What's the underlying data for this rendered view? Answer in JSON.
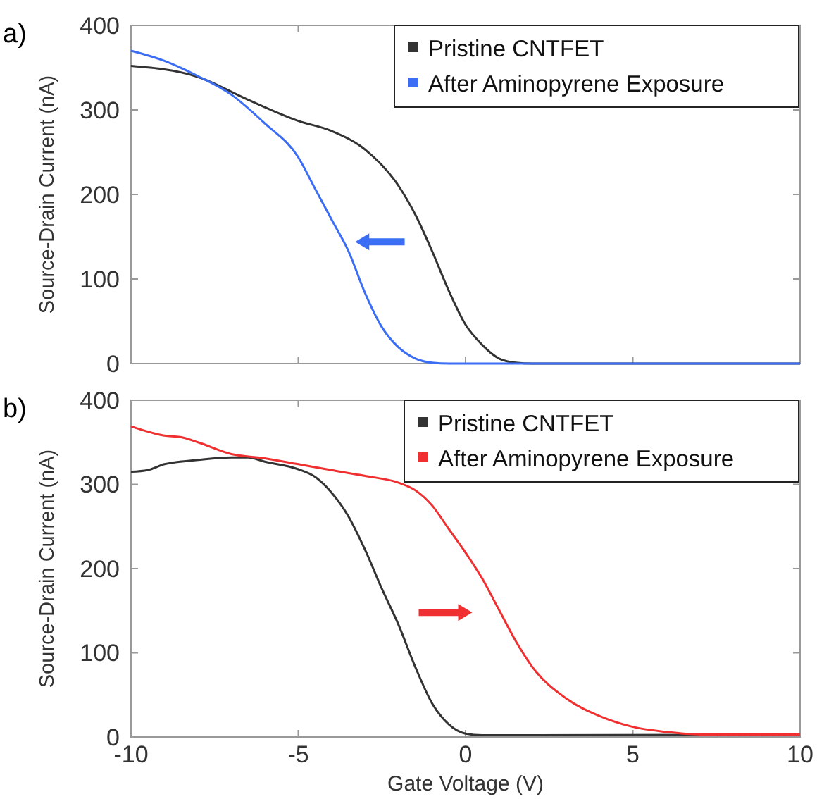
{
  "chart_data": [
    {
      "type": "line",
      "ylabel": "Source-Drain Current (nA)",
      "annotations": [
        "a)"
      ],
      "xlim": [
        -10,
        10
      ],
      "xticks": [
        {
          "value": -10,
          "label": null
        },
        {
          "value": -5,
          "label": null
        },
        {
          "value": 0,
          "label": null
        },
        {
          "value": 5,
          "label": null
        },
        {
          "value": 10,
          "label": null
        }
      ],
      "ylim": [
        0,
        400
      ],
      "yticks": [
        0,
        100,
        200,
        300,
        400
      ],
      "tick_labels": "y",
      "legend": "top right",
      "grid": false,
      "series": [
        {
          "name": "Pristine CNTFET",
          "color": "#333333",
          "x": [
            -10,
            -8,
            -6.5,
            -5,
            -4,
            -3,
            -2,
            -1.5,
            -1,
            -0.5,
            0,
            0.5,
            1,
            1.5,
            2,
            10
          ],
          "values": [
            352,
            339,
            312,
            287,
            275,
            253,
            210,
            176,
            133,
            86,
            46,
            22,
            6,
            1,
            0,
            0
          ]
        },
        {
          "name": "After Aminopyrene Exposure",
          "color": "#3c6ef5",
          "x": [
            -10,
            -9,
            -8,
            -7,
            -6,
            -5,
            -4.5,
            -4,
            -3.5,
            -3,
            -2.5,
            -2,
            -1.5,
            -1,
            -0.5,
            10
          ],
          "values": [
            370,
            358,
            340,
            318,
            284,
            244,
            207,
            170,
            133,
            83,
            43,
            19,
            6,
            1,
            0,
            0
          ]
        }
      ]
    },
    {
      "type": "line",
      "ylabel": "Source-Drain Current (nA)",
      "xlabel": "Gate Voltage (V)",
      "annotations": [
        "b)"
      ],
      "xlim": [
        -10,
        10
      ],
      "xticks": [
        -10,
        -5,
        0,
        5,
        10
      ],
      "ylim": [
        0,
        400
      ],
      "yticks": [
        0,
        100,
        200,
        300,
        400
      ],
      "legend": "top right",
      "grid": false,
      "series": [
        {
          "name": "Pristine CNTFET",
          "color": "#333333",
          "x": [
            -10,
            -9.5,
            -9,
            -8,
            -7,
            -6.5,
            -6,
            -5,
            -4.5,
            -4,
            -3.5,
            -3,
            -2.5,
            -2,
            -1.5,
            -1,
            -0.5,
            0,
            0.5,
            10
          ],
          "values": [
            315,
            317,
            324,
            329,
            332,
            332,
            327,
            318,
            309,
            290,
            262,
            222,
            176,
            133,
            83,
            40,
            15,
            4,
            2,
            3
          ]
        },
        {
          "name": "After Aminopyrene Exposure",
          "color": "#f03030",
          "x": [
            -10,
            -9,
            -8.5,
            -8,
            -7,
            -6,
            -5,
            -4,
            -3,
            -2,
            -1.5,
            -1,
            -0.5,
            0,
            0.5,
            1,
            1.5,
            2,
            3,
            4,
            5,
            6,
            7,
            10
          ],
          "values": [
            369,
            358,
            356,
            350,
            336,
            331,
            324,
            317,
            310,
            302,
            293,
            275,
            247,
            219,
            188,
            151,
            114,
            83,
            46,
            25,
            12,
            6,
            3,
            3
          ]
        }
      ]
    }
  ]
}
